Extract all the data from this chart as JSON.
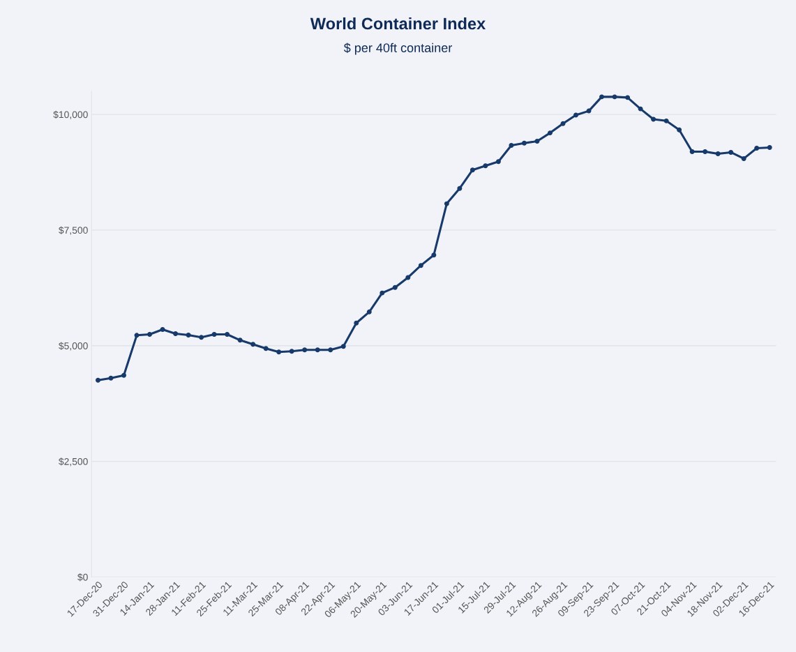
{
  "chart_data": {
    "type": "line",
    "title": "World Container Index",
    "subtitle": "$ per 40ft container",
    "categories": [
      "17-Dec-20",
      null,
      "31-Dec-20",
      null,
      "14-Jan-21",
      null,
      "28-Jan-21",
      null,
      "11-Feb-21",
      null,
      "25-Feb-21",
      null,
      "11-Mar-21",
      null,
      "25-Mar-21",
      null,
      "08-Apr-21",
      null,
      "22-Apr-21",
      null,
      "06-May-21",
      null,
      "20-May-21",
      null,
      "03-Jun-21",
      null,
      "17-Jun-21",
      null,
      "01-Jul-21",
      null,
      "15-Jul-21",
      null,
      "29-Jul-21",
      null,
      "12-Aug-21",
      null,
      "26-Aug-21",
      null,
      "09-Sep-21",
      null,
      "23-Sep-21",
      null,
      "07-Oct-21",
      null,
      "21-Oct-21",
      null,
      "04-Nov-21",
      null,
      "18-Nov-21",
      null,
      "02-Dec-21",
      null,
      "16-Dec-21"
    ],
    "series": [
      {
        "color": "#173a6a",
        "values": [
          4255,
          4300,
          4360,
          5225,
          5245,
          5350,
          5260,
          5230,
          5180,
          5245,
          5245,
          5120,
          5030,
          4940,
          4865,
          4880,
          4910,
          4910,
          4910,
          4985,
          5490,
          5730,
          6140,
          6260,
          6475,
          6735,
          6960,
          8070,
          8400,
          8800,
          8890,
          8980,
          9330,
          9380,
          9420,
          9600,
          9800,
          9985,
          10075,
          10380,
          10380,
          10365,
          10120,
          9895,
          9860,
          9665,
          9195,
          9195,
          9150,
          9180,
          9045,
          9270,
          9285
        ]
      }
    ],
    "ylim": [
      0,
      10500
    ],
    "yticks": [
      {
        "value": 0,
        "label": "$0"
      },
      {
        "value": 2500,
        "label": "$2,500"
      },
      {
        "value": 5000,
        "label": "$5,000"
      },
      {
        "value": 7500,
        "label": "$7,500"
      },
      {
        "value": 10000,
        "label": "$10,000"
      }
    ],
    "grid": "y",
    "marker": "circle",
    "line_style": "solid"
  }
}
